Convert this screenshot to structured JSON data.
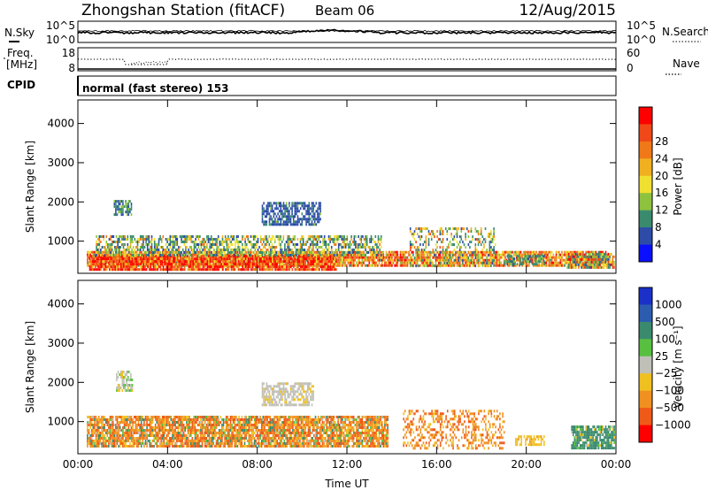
{
  "header": {
    "station": "Zhongshan Station (fitACF)",
    "beam": "Beam 06",
    "date": "12/Aug/2015",
    "cpid_label": "CPID",
    "cpid_value": "normal (fast stereo) 153"
  },
  "panel_nsky": {
    "left_label": "N.Sky",
    "right_label": "N.Search",
    "y_ticks_left": [
      "10^5",
      "10^0"
    ],
    "y_ticks_right": [
      "10^5",
      "10^0"
    ]
  },
  "panel_freq": {
    "left_label_1": "Freq.",
    "left_label_2": "[MHz]",
    "right_label": "Nave",
    "y_ticks_left": [
      "18",
      "8"
    ],
    "y_ticks_right": [
      "60",
      "0"
    ]
  },
  "chart_data": [
    {
      "type": "heatmap",
      "name": "power",
      "ylabel": "Slant Range [km]",
      "ylim": [
        180,
        4600
      ],
      "y_ticks": [
        1000,
        2000,
        3000,
        4000
      ],
      "x_ticks": [
        "00:00",
        "04:00",
        "08:00",
        "12:00",
        "16:00",
        "20:00",
        "00:00"
      ],
      "xlim_hours": [
        0,
        24
      ],
      "colorbar": {
        "label": "Power [dB]",
        "ticks": [
          "4",
          "8",
          "12",
          "16",
          "20",
          "24",
          "28"
        ],
        "colors": [
          "#0a10ff",
          "#2c4ca8",
          "#3a8a6e",
          "#8ec23e",
          "#f0e030",
          "#f0b020",
          "#f07818",
          "#f04818",
          "#ff0000"
        ]
      },
      "regions": [
        {
          "t": [
            0.4,
            23.7
          ],
          "r": [
            400,
            750
          ],
          "weights": [
            0,
            0,
            0.05,
            0.1,
            0.15,
            0.2,
            0.25,
            0.15,
            0.1
          ],
          "density": 0.85
        },
        {
          "t": [
            0.5,
            11.5
          ],
          "r": [
            300,
            650
          ],
          "weights": [
            0,
            0,
            0,
            0,
            0.05,
            0.1,
            0.2,
            0.25,
            0.4
          ],
          "density": 0.9
        },
        {
          "t": [
            0.8,
            13.5
          ],
          "r": [
            650,
            1150
          ],
          "weights": [
            0,
            0.15,
            0.3,
            0.2,
            0.15,
            0.1,
            0.1,
            0,
            0
          ],
          "density": 0.6
        },
        {
          "t": [
            1.6,
            2.4
          ],
          "r": [
            1700,
            2050
          ],
          "weights": [
            0,
            0.3,
            0.5,
            0.2,
            0,
            0,
            0,
            0,
            0
          ],
          "density": 0.7
        },
        {
          "t": [
            8.2,
            10.8
          ],
          "r": [
            1450,
            2000
          ],
          "weights": [
            0,
            0.75,
            0.2,
            0.05,
            0,
            0,
            0,
            0,
            0
          ],
          "density": 0.7
        },
        {
          "t": [
            14.8,
            18.6
          ],
          "r": [
            350,
            1350
          ],
          "weights": [
            0,
            0.15,
            0.25,
            0.15,
            0.15,
            0.15,
            0.1,
            0.05,
            0
          ],
          "density": 0.35
        },
        {
          "t": [
            19.0,
            20.8
          ],
          "r": [
            400,
            650
          ],
          "weights": [
            0,
            0.2,
            0.6,
            0.2,
            0,
            0,
            0,
            0,
            0
          ],
          "density": 0.6
        },
        {
          "t": [
            21.8,
            23.9
          ],
          "r": [
            300,
            700
          ],
          "weights": [
            0,
            0.1,
            0.3,
            0.1,
            0.1,
            0.1,
            0.1,
            0.1,
            0.1
          ],
          "density": 0.8
        }
      ]
    },
    {
      "type": "heatmap",
      "name": "velocity",
      "ylabel": "Slant Range [km]",
      "ylim": [
        180,
        4600
      ],
      "y_ticks": [
        1000,
        2000,
        3000,
        4000
      ],
      "x_ticks": [
        "00:00",
        "04:00",
        "08:00",
        "12:00",
        "16:00",
        "20:00",
        "00:00"
      ],
      "xlabel": "Time UT",
      "xlim_hours": [
        0,
        24
      ],
      "colorbar": {
        "label": "Velocity [m s⁻¹]",
        "ticks": [
          "1000",
          "500",
          "100",
          "25",
          "−25",
          "−100",
          "−500",
          "−1000"
        ],
        "colors": [
          "#1a30c8",
          "#2c5cb0",
          "#3a8a6e",
          "#58c040",
          "#c0c0b8",
          "#f0c020",
          "#f09020",
          "#f05a18",
          "#ff0000"
        ]
      },
      "regions": [
        {
          "t": [
            0.4,
            13.8
          ],
          "r": [
            350,
            1150
          ],
          "weights": [
            0,
            0,
            0.1,
            0.05,
            0.05,
            0.15,
            0.35,
            0.3,
            0
          ],
          "density": 0.85
        },
        {
          "t": [
            14.5,
            19.0
          ],
          "r": [
            300,
            1300
          ],
          "weights": [
            0,
            0,
            0,
            0,
            0,
            0.2,
            0.45,
            0.35,
            0
          ],
          "density": 0.35
        },
        {
          "t": [
            1.7,
            2.4
          ],
          "r": [
            1800,
            2300
          ],
          "weights": [
            0,
            0,
            0,
            0.2,
            0.6,
            0.2,
            0,
            0,
            0
          ],
          "density": 0.6
        },
        {
          "t": [
            8.2,
            10.5
          ],
          "r": [
            1400,
            2000
          ],
          "weights": [
            0,
            0,
            0,
            0,
            0.8,
            0.2,
            0,
            0,
            0
          ],
          "density": 0.7
        },
        {
          "t": [
            19.5,
            20.8
          ],
          "r": [
            400,
            650
          ],
          "weights": [
            0,
            0,
            0,
            0,
            0,
            0.9,
            0.1,
            0,
            0
          ],
          "density": 0.6
        },
        {
          "t": [
            22.0,
            23.9
          ],
          "r": [
            300,
            900
          ],
          "weights": [
            0,
            0,
            0.8,
            0.1,
            0.05,
            0.05,
            0,
            0,
            0
          ],
          "density": 0.85
        }
      ]
    }
  ]
}
